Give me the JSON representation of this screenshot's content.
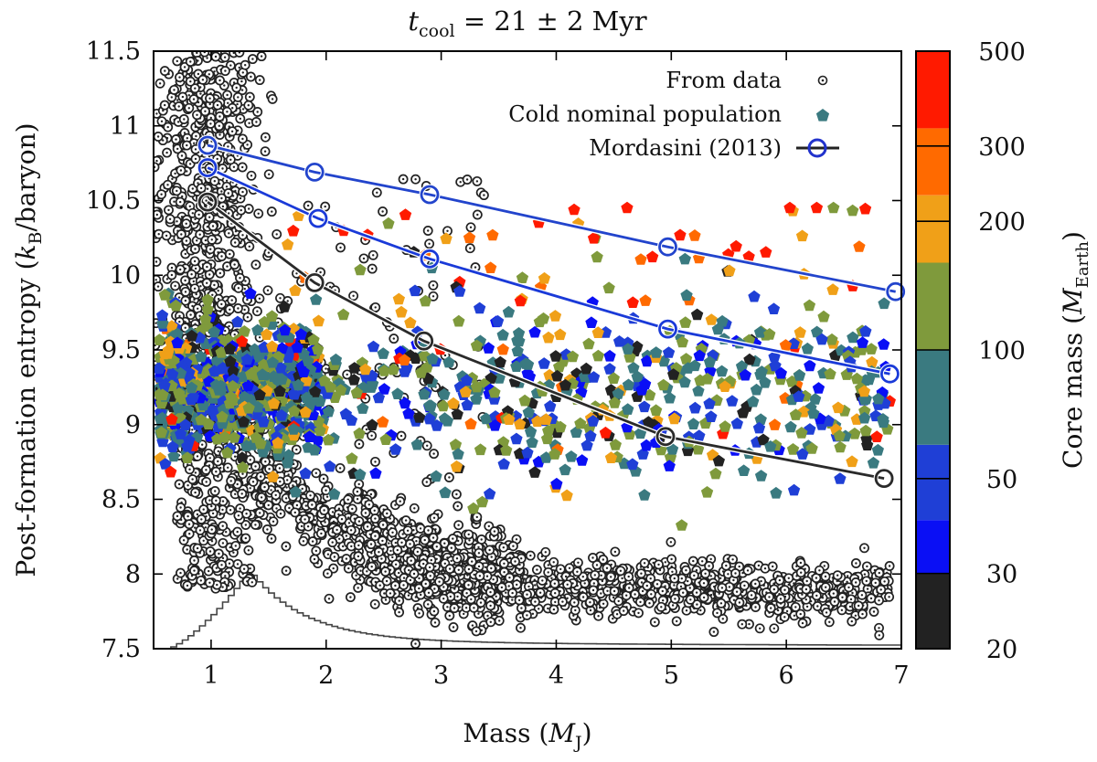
{
  "chart_data": {
    "type": "scatter",
    "title": "t_cool = 21 ± 2 Myr",
    "title_parts": {
      "t": "t",
      "sub": "cool",
      "rest": " = 21 ± 2 Myr"
    },
    "xlabel": "Mass (M_J)",
    "xlabel_parts": {
      "pre": "Mass (",
      "M": "M",
      "sub": "J",
      "post": ")"
    },
    "ylabel": "Post-formation entropy (k_B/baryon)",
    "ylabel_parts": {
      "pre": "Post-formation entropy (",
      "k": "k",
      "sub": "B",
      "post": "/baryon)"
    },
    "xlim": [
      0.5,
      7
    ],
    "ylim": [
      7.5,
      11.5
    ],
    "xticks": [
      "1",
      "2",
      "3",
      "4",
      "5",
      "6",
      "7"
    ],
    "yticks": [
      "7.5",
      "8",
      "8.5",
      "9",
      "9.5",
      "10",
      "10.5",
      "11",
      "11.5"
    ],
    "legend": {
      "position": "top-right",
      "entries": [
        "From data",
        "Cold nominal population",
        "Mordasini (2013)"
      ]
    },
    "mordasini_curves": [
      {
        "name": "Mordasini (2013) upper",
        "color": "#2244cc",
        "points": [
          [
            0.97,
            10.87
          ],
          [
            1.9,
            10.69
          ],
          [
            2.9,
            10.54
          ],
          [
            4.97,
            10.19
          ],
          [
            6.95,
            9.89
          ]
        ]
      },
      {
        "name": "Mordasini (2013) middle",
        "color": "#1a3ad8",
        "points": [
          [
            0.97,
            10.72
          ],
          [
            1.93,
            10.38
          ],
          [
            2.9,
            10.11
          ],
          [
            4.97,
            9.64
          ],
          [
            6.9,
            9.34
          ]
        ]
      },
      {
        "name": "Mordasini (2013) lower",
        "color": "#2a2a2a",
        "points": [
          [
            0.97,
            10.49
          ],
          [
            1.9,
            9.95
          ],
          [
            2.85,
            9.56
          ],
          [
            4.95,
            8.92
          ],
          [
            6.85,
            8.64
          ]
        ]
      }
    ],
    "histogram": {
      "description": "mass distribution histogram (arbitrary units)",
      "peak_mass": 1.3,
      "peak_value": 8.0,
      "baseline": 7.5
    },
    "data_cloud": {
      "description": "entropy inferred from data",
      "count": 2600
    },
    "population": {
      "description": "cold nominal population, colored by core mass",
      "count": 1300
    },
    "colorbar": {
      "label": "Core mass (M_Earth)",
      "label_parts": {
        "pre": "Core mass (",
        "M": "M",
        "sub": "Earth",
        "post": ")"
      },
      "range": [
        20,
        500
      ],
      "scale": "log",
      "ticks": [
        "20",
        "30",
        "50",
        "100",
        "200",
        "300",
        "500"
      ],
      "bands": [
        {
          "from": 20,
          "to": 30,
          "color": "#222222"
        },
        {
          "from": 30,
          "to": 40,
          "color": "#0a0ff5"
        },
        {
          "from": 40,
          "to": 60,
          "color": "#1f3fd6"
        },
        {
          "from": 60,
          "to": 100,
          "color": "#3a7a80"
        },
        {
          "from": 100,
          "to": 160,
          "color": "#7f9a3c"
        },
        {
          "from": 160,
          "to": 230,
          "color": "#f0a018"
        },
        {
          "from": 230,
          "to": 330,
          "color": "#ff6a00"
        },
        {
          "from": 330,
          "to": 500,
          "color": "#ff1a00"
        }
      ]
    }
  }
}
